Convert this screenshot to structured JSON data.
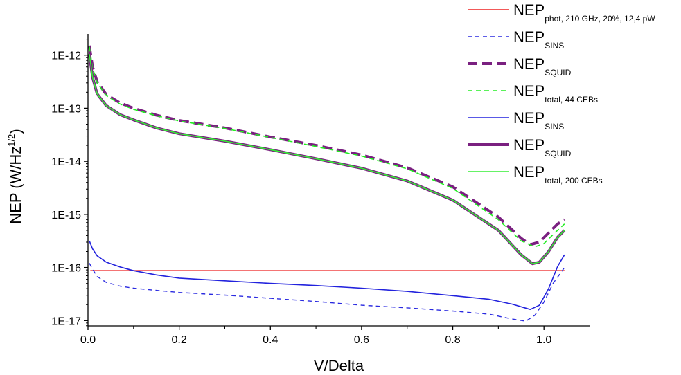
{
  "chart_data": {
    "type": "line",
    "xlabel": "V/Delta",
    "ylabel": {
      "main": "NEP (W/Hz",
      "sup": "1/2",
      "end": ")"
    },
    "xlim": [
      0,
      1.1
    ],
    "ylim_log10": [
      -17.1,
      -11.6
    ],
    "y_scale": "log",
    "x_ticks": [
      0.0,
      0.2,
      0.4,
      0.6,
      0.8,
      1.0
    ],
    "x_tick_labels": [
      "0.0",
      "0.2",
      "0.4",
      "0.6",
      "0.8",
      "1.0"
    ],
    "y_ticks_log10": [
      -17,
      -16,
      -15,
      -14,
      -13,
      -12
    ],
    "y_tick_labels": [
      "1E-17",
      "1E-16",
      "1E-15",
      "1E-14",
      "1E-13",
      "1E-12"
    ],
    "legend_position": "top-right",
    "series": [
      {
        "id": "phot",
        "name": "NEP",
        "sub": "phot, 210 GHz, 20%, 12,4 pW",
        "color": "#ee2222",
        "width": 1.6,
        "dash": "",
        "points": [
          [
            0.005,
            -16.06
          ],
          [
            1.045,
            -16.06
          ]
        ]
      },
      {
        "id": "sins44",
        "name": "NEP",
        "sub": "SINS",
        "color": "#2a2ae0",
        "width": 1.4,
        "dash": "6,5",
        "points": [
          [
            0.003,
            -15.92
          ],
          [
            0.01,
            -16.03
          ],
          [
            0.02,
            -16.17
          ],
          [
            0.04,
            -16.28
          ],
          [
            0.07,
            -16.35
          ],
          [
            0.1,
            -16.39
          ],
          [
            0.15,
            -16.43
          ],
          [
            0.2,
            -16.47
          ],
          [
            0.3,
            -16.52
          ],
          [
            0.4,
            -16.58
          ],
          [
            0.5,
            -16.64
          ],
          [
            0.6,
            -16.71
          ],
          [
            0.7,
            -16.76
          ],
          [
            0.8,
            -16.82
          ],
          [
            0.88,
            -16.88
          ],
          [
            0.93,
            -16.97
          ],
          [
            0.96,
            -17.01
          ],
          [
            0.98,
            -16.9
          ],
          [
            1.0,
            -16.65
          ],
          [
            1.02,
            -16.3
          ],
          [
            1.045,
            -16.0
          ]
        ]
      },
      {
        "id": "squid44",
        "name": "NEP",
        "sub": "SQUID",
        "color": "#7a2080",
        "width": 4,
        "dash": "14,7",
        "points": [
          [
            0.003,
            -11.82
          ],
          [
            0.01,
            -12.22
          ],
          [
            0.02,
            -12.5
          ],
          [
            0.04,
            -12.74
          ],
          [
            0.07,
            -12.9
          ],
          [
            0.1,
            -13.0
          ],
          [
            0.15,
            -13.13
          ],
          [
            0.2,
            -13.23
          ],
          [
            0.3,
            -13.37
          ],
          [
            0.4,
            -13.54
          ],
          [
            0.5,
            -13.7
          ],
          [
            0.6,
            -13.88
          ],
          [
            0.7,
            -14.12
          ],
          [
            0.8,
            -14.48
          ],
          [
            0.9,
            -15.05
          ],
          [
            0.95,
            -15.45
          ],
          [
            0.97,
            -15.57
          ],
          [
            0.99,
            -15.52
          ],
          [
            1.01,
            -15.35
          ],
          [
            1.03,
            -15.18
          ],
          [
            1.045,
            -15.1
          ]
        ]
      },
      {
        "id": "total44",
        "name": "NEP",
        "sub": "total, 44 CEBs",
        "color": "#22ee22",
        "width": 1.6,
        "dash": "7,5",
        "points": [
          [
            0.003,
            -11.84
          ],
          [
            0.01,
            -12.24
          ],
          [
            0.02,
            -12.52
          ],
          [
            0.04,
            -12.76
          ],
          [
            0.07,
            -12.92
          ],
          [
            0.1,
            -13.02
          ],
          [
            0.15,
            -13.14
          ],
          [
            0.2,
            -13.24
          ],
          [
            0.3,
            -13.38
          ],
          [
            0.4,
            -13.55
          ],
          [
            0.5,
            -13.72
          ],
          [
            0.6,
            -13.9
          ],
          [
            0.7,
            -14.14
          ],
          [
            0.8,
            -14.51
          ],
          [
            0.9,
            -15.1
          ],
          [
            0.95,
            -15.5
          ],
          [
            0.98,
            -15.61
          ],
          [
            1.0,
            -15.55
          ],
          [
            1.02,
            -15.38
          ],
          [
            1.045,
            -15.18
          ]
        ]
      },
      {
        "id": "sins200",
        "name": "NEP",
        "sub": "SINS",
        "color": "#2222dd",
        "width": 1.6,
        "dash": "",
        "points": [
          [
            0.003,
            -15.5
          ],
          [
            0.01,
            -15.65
          ],
          [
            0.02,
            -15.78
          ],
          [
            0.04,
            -15.9
          ],
          [
            0.07,
            -15.99
          ],
          [
            0.1,
            -16.06
          ],
          [
            0.15,
            -16.14
          ],
          [
            0.2,
            -16.2
          ],
          [
            0.3,
            -16.25
          ],
          [
            0.4,
            -16.3
          ],
          [
            0.5,
            -16.34
          ],
          [
            0.6,
            -16.39
          ],
          [
            0.7,
            -16.45
          ],
          [
            0.8,
            -16.53
          ],
          [
            0.88,
            -16.6
          ],
          [
            0.93,
            -16.69
          ],
          [
            0.97,
            -16.79
          ],
          [
            0.99,
            -16.71
          ],
          [
            1.01,
            -16.4
          ],
          [
            1.03,
            -15.98
          ],
          [
            1.045,
            -15.76
          ]
        ]
      },
      {
        "id": "squid200",
        "name": "NEP",
        "sub": "SQUID",
        "color": "#7a2080",
        "width": 4,
        "dash": "",
        "points": [
          [
            0.003,
            -11.98
          ],
          [
            0.01,
            -12.42
          ],
          [
            0.02,
            -12.73
          ],
          [
            0.04,
            -12.95
          ],
          [
            0.07,
            -13.12
          ],
          [
            0.1,
            -13.22
          ],
          [
            0.15,
            -13.37
          ],
          [
            0.2,
            -13.48
          ],
          [
            0.3,
            -13.62
          ],
          [
            0.4,
            -13.78
          ],
          [
            0.5,
            -13.95
          ],
          [
            0.6,
            -14.13
          ],
          [
            0.7,
            -14.37
          ],
          [
            0.8,
            -14.73
          ],
          [
            0.9,
            -15.3
          ],
          [
            0.95,
            -15.76
          ],
          [
            0.975,
            -15.93
          ],
          [
            0.99,
            -15.9
          ],
          [
            1.01,
            -15.7
          ],
          [
            1.03,
            -15.43
          ],
          [
            1.045,
            -15.3
          ]
        ]
      },
      {
        "id": "total200",
        "name": "NEP",
        "sub": "total, 200 CEBs",
        "color": "#33ee33",
        "width": 1.6,
        "dash": "",
        "points": [
          [
            0.003,
            -11.98
          ],
          [
            0.01,
            -12.42
          ],
          [
            0.02,
            -12.73
          ],
          [
            0.04,
            -12.95
          ],
          [
            0.07,
            -13.12
          ],
          [
            0.1,
            -13.22
          ],
          [
            0.15,
            -13.37
          ],
          [
            0.2,
            -13.48
          ],
          [
            0.3,
            -13.62
          ],
          [
            0.4,
            -13.78
          ],
          [
            0.5,
            -13.95
          ],
          [
            0.6,
            -14.13
          ],
          [
            0.7,
            -14.37
          ],
          [
            0.8,
            -14.73
          ],
          [
            0.9,
            -15.3
          ],
          [
            0.95,
            -15.76
          ],
          [
            0.975,
            -15.93
          ],
          [
            0.99,
            -15.9
          ],
          [
            1.01,
            -15.7
          ],
          [
            1.03,
            -15.43
          ],
          [
            1.045,
            -15.3
          ]
        ]
      }
    ]
  }
}
